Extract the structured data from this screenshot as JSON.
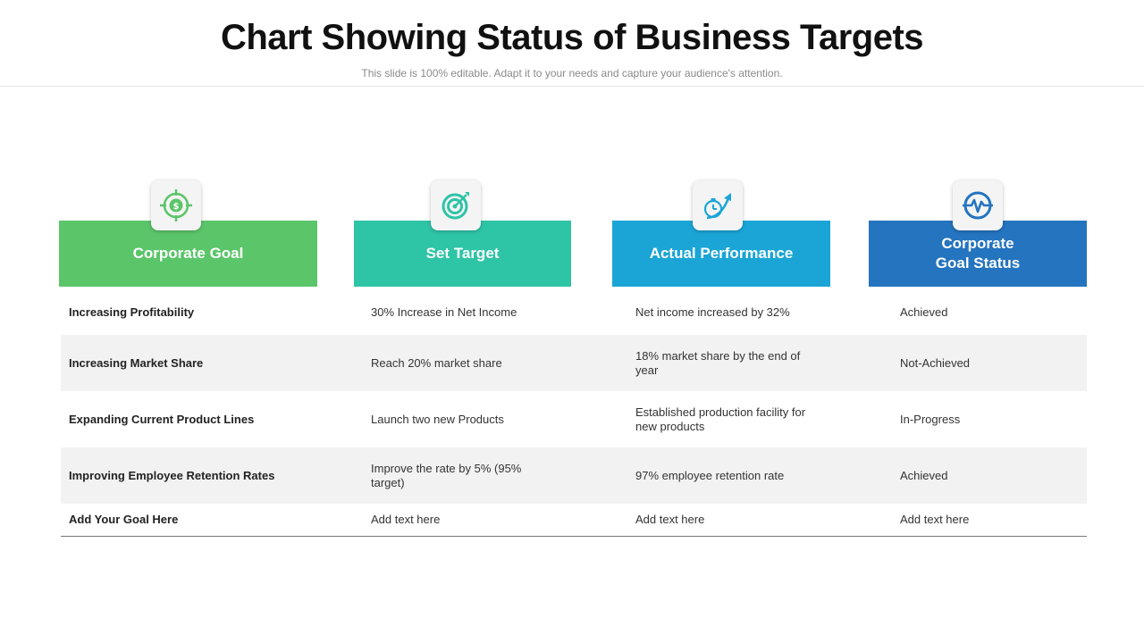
{
  "title": "Chart Showing Status of Business Targets",
  "subtitle": "This slide is 100% editable. Adapt it to your needs and capture your audience's attention.",
  "colors": {
    "green": "#5bc56a",
    "teal": "#2ec4a6",
    "cyan": "#1aa5d6",
    "blue": "#2474bf"
  },
  "columns": [
    {
      "label": "Corporate Goal",
      "icon": "target-dollar-icon"
    },
    {
      "label": "Set Target",
      "icon": "dartboard-icon"
    },
    {
      "label": "Actual Performance",
      "icon": "stopwatch-growth-icon"
    },
    {
      "label": "Corporate\nGoal Status",
      "icon": "heartbeat-circle-icon"
    }
  ],
  "rows": [
    {
      "goal": "Increasing Profitability",
      "target": "30% Increase in Net Income",
      "performance": "Net income increased by 32%",
      "status": "Achieved"
    },
    {
      "goal": "Increasing Market Share",
      "target": "Reach 20% market share",
      "performance": "18% market share by the end of year",
      "status": "Not-Achieved"
    },
    {
      "goal": "Expanding Current  Product Lines",
      "target": "Launch two new Products",
      "performance": "Established production facility for new products",
      "status": "In-Progress"
    },
    {
      "goal": "Improving Employee Retention Rates",
      "target": "Improve the rate by 5% (95% target)",
      "performance": "97% employee retention rate",
      "status": "Achieved"
    },
    {
      "goal": "Add Your Goal Here",
      "target": "Add text here",
      "performance": "Add text here",
      "status": "Add text here"
    }
  ]
}
